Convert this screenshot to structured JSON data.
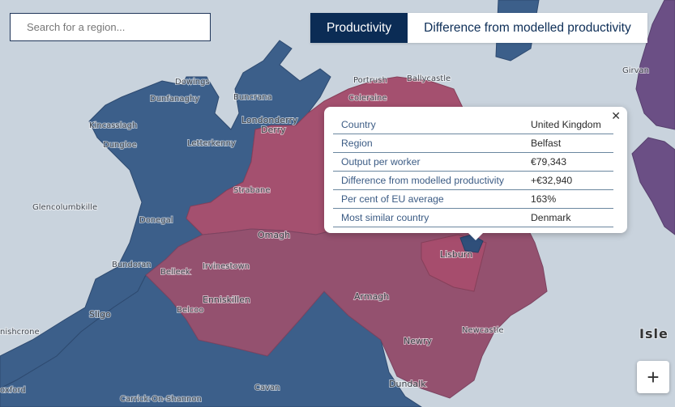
{
  "search": {
    "placeholder": "Search for a region..."
  },
  "toggle": {
    "productivity": "Productivity",
    "difference": "Difference from modelled productivity"
  },
  "popup": {
    "rows": [
      {
        "label": "Country",
        "value": "United Kingdom"
      },
      {
        "label": "Region",
        "value": "Belfast"
      },
      {
        "label": "Output per worker",
        "value": "€79,343"
      },
      {
        "label": "Difference from modelled productivity",
        "value": "+€32,940"
      },
      {
        "label": "Per cent of EU average",
        "value": "163%"
      },
      {
        "label": "Most similar country",
        "value": "Denmark"
      }
    ]
  },
  "map": {
    "places": {
      "dowings": "Dowings",
      "dunfanaghy": "Dunfanaghy",
      "buncrana": "Buncrana",
      "kincasslagh": "Kincasslagh",
      "dungloe": "Dungloe",
      "letterkenny": "Letterkenny",
      "londonderry": "Londonderry",
      "derry": "Derry",
      "portrush": "Portrush",
      "ballycastle": "Ballycastle",
      "coleraine": "Coleraine",
      "strabane": "Strabane",
      "glencolumbkille": "Glencolumbkille",
      "donegal": "Donegal",
      "omagh": "Omagh",
      "bundoran": "Bundoran",
      "belleek": "Belleek",
      "irvinestown": "Irvinestown",
      "lisburn": "Lisburn",
      "enniskillen": "Enniskillen",
      "armagh": "Armagh",
      "sligo": "Sligo",
      "belcoo": "Belcoo",
      "newcastle": "Newcastle",
      "newry": "Newry",
      "inishcrone": "nishcrone",
      "dundalk": "Dundalk",
      "cavan": "Cavan",
      "carrick": "Carrick-On-Shannon",
      "foxford": "oxford",
      "girvan": "Girvan",
      "isle": "Isle"
    }
  },
  "colors": {
    "navy": "#0b2c55",
    "ireland_blue": "#3c5f8a",
    "ni_red": "#a4506f",
    "scotland_purple": "#6b4f85"
  },
  "icons": {
    "close": "close-icon",
    "zoom_in": "plus-icon"
  },
  "zoom": {
    "plus": "+"
  }
}
